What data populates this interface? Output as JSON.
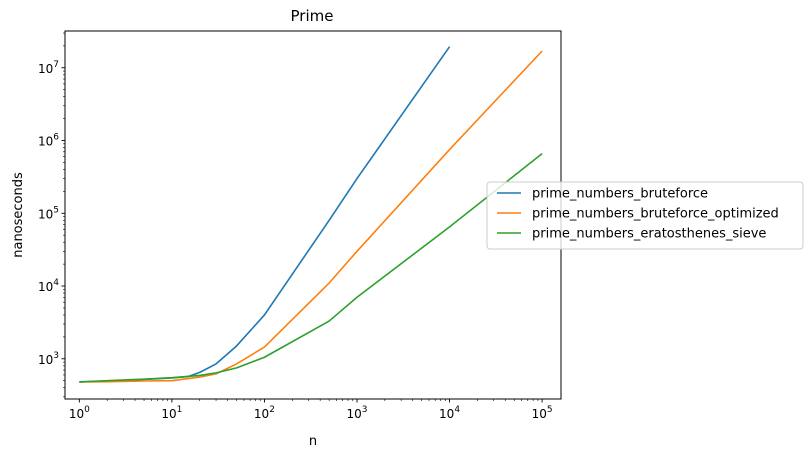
{
  "chart_data": {
    "type": "line",
    "title": "Prime",
    "xlabel": "n",
    "ylabel": "nanoseconds",
    "xscale": "log",
    "yscale": "log",
    "xlim": [
      0.7,
      160000
    ],
    "ylim": [
      280,
      32000000
    ],
    "grid": false,
    "legend_position": "right, outside the plot",
    "x_tick_labels": [
      {
        "base": "10",
        "exp": "0"
      },
      {
        "base": "10",
        "exp": "1"
      },
      {
        "base": "10",
        "exp": "2"
      },
      {
        "base": "10",
        "exp": "3"
      },
      {
        "base": "10",
        "exp": "4"
      },
      {
        "base": "10",
        "exp": "5"
      }
    ],
    "y_tick_labels": [
      {
        "base": "10",
        "exp": "3"
      },
      {
        "base": "10",
        "exp": "4"
      },
      {
        "base": "10",
        "exp": "5"
      },
      {
        "base": "10",
        "exp": "6"
      },
      {
        "base": "10",
        "exp": "7"
      }
    ],
    "series": [
      {
        "name": "prime_numbers_bruteforce",
        "color": "#1f77b4",
        "points": [
          [
            1,
            480
          ],
          [
            2,
            495
          ],
          [
            5,
            520
          ],
          [
            10,
            545
          ],
          [
            15,
            570
          ],
          [
            20,
            650
          ],
          [
            30,
            850
          ],
          [
            50,
            1500
          ],
          [
            100,
            4000
          ],
          [
            500,
            80000
          ],
          [
            1000,
            300000
          ],
          [
            10000,
            19500000
          ]
        ]
      },
      {
        "name": "prime_numbers_bruteforce_optimized",
        "color": "#ff7f0e",
        "points": [
          [
            1,
            480
          ],
          [
            2,
            485
          ],
          [
            5,
            495
          ],
          [
            10,
            500
          ],
          [
            20,
            560
          ],
          [
            30,
            620
          ],
          [
            50,
            850
          ],
          [
            100,
            1450
          ],
          [
            500,
            11000
          ],
          [
            1000,
            30000
          ],
          [
            10000,
            750000
          ],
          [
            100000,
            17000000
          ]
        ]
      },
      {
        "name": "prime_numbers_eratosthenes_sieve",
        "color": "#2ca02c",
        "points": [
          [
            1,
            480
          ],
          [
            2,
            500
          ],
          [
            5,
            525
          ],
          [
            10,
            550
          ],
          [
            20,
            590
          ],
          [
            30,
            640
          ],
          [
            50,
            750
          ],
          [
            100,
            1050
          ],
          [
            500,
            3300
          ],
          [
            1000,
            7000
          ],
          [
            10000,
            65000
          ],
          [
            100000,
            660000
          ]
        ]
      }
    ]
  }
}
